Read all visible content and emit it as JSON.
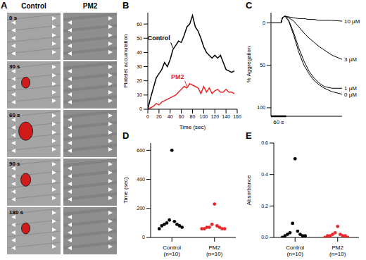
{
  "chart_data": [
    {
      "type": "image_grid",
      "title": "A",
      "columns": [
        "Control",
        "PM2"
      ],
      "rows": [
        "0 s",
        "30 s",
        "60 s",
        "90 s",
        "180 s"
      ]
    },
    {
      "type": "line",
      "title": "B",
      "x_label": "Time (sec)",
      "y_label": "Platelet accumulation",
      "x": [
        0,
        5,
        10,
        15,
        20,
        25,
        30,
        35,
        40,
        45,
        50,
        55,
        60,
        65,
        70,
        75,
        80,
        85,
        90,
        95,
        100,
        105,
        110,
        115,
        120,
        125,
        130,
        135,
        140,
        145,
        150,
        155
      ],
      "series": [
        {
          "name": "Control",
          "color": "#000000",
          "values": [
            0,
            8,
            15,
            22,
            25,
            28,
            33,
            30,
            35,
            42,
            45,
            48,
            47,
            52,
            58,
            60,
            66,
            58,
            55,
            50,
            44,
            40,
            38,
            36,
            38,
            36,
            38,
            33,
            28,
            27,
            26,
            27
          ]
        },
        {
          "name": "PM2",
          "color": "#e8272a",
          "values": [
            0,
            1,
            2,
            4,
            3,
            5,
            6,
            7,
            8,
            9,
            10,
            12,
            14,
            16,
            15,
            18,
            17,
            16,
            15,
            11,
            16,
            12,
            15,
            11,
            13,
            14,
            12,
            12,
            14,
            12,
            12,
            11
          ]
        }
      ],
      "xlim": [
        0,
        160
      ],
      "xticks": [
        0,
        20,
        40,
        60,
        80,
        100,
        120,
        140,
        160
      ],
      "ylim": [
        0,
        68
      ],
      "yticks": [
        0,
        10,
        20,
        30,
        40,
        50,
        60
      ]
    },
    {
      "type": "line",
      "title": "C",
      "y_label": "% Aggregation",
      "x": [
        0,
        20,
        40,
        45,
        55,
        70,
        90,
        110,
        130,
        150,
        170,
        190,
        210,
        240,
        280
      ],
      "series": [
        {
          "name": "10 µM",
          "color": "#000000",
          "values": [
            0,
            0,
            0,
            -6,
            -8,
            -7,
            -6,
            -5,
            -5,
            -4,
            -4,
            -3,
            -3,
            -3,
            -2
          ]
        },
        {
          "name": "3 µM",
          "color": "#000000",
          "values": [
            0,
            0,
            0,
            -6,
            -8,
            -6,
            -2,
            5,
            12,
            18,
            23,
            28,
            32,
            38,
            43
          ]
        },
        {
          "name": "1 µM",
          "color": "#000000",
          "values": [
            0,
            0,
            0,
            -6,
            -8,
            -3,
            12,
            30,
            45,
            57,
            65,
            71,
            75,
            77,
            77
          ]
        },
        {
          "name": "0 µM",
          "color": "#000000",
          "values": [
            0,
            0,
            0,
            -6,
            -8,
            -2,
            15,
            35,
            50,
            60,
            68,
            73,
            77,
            81,
            84
          ]
        }
      ],
      "xlim": [
        0,
        280
      ],
      "ylim": [
        -12,
        110
      ],
      "yticks": [
        0,
        50,
        100
      ],
      "tick_labels": "y",
      "scale_bar": {
        "value": 60,
        "label": "60 s"
      }
    },
    {
      "type": "scatter",
      "title": "D",
      "y_label": "Time (sec)",
      "categories": [
        "Control\n(n=10)",
        "PM2\n(n=10)"
      ],
      "colors": [
        "#000000",
        "#e8272a"
      ],
      "values": [
        [
          600,
          120,
          110,
          100,
          90,
          90,
          80,
          80,
          70,
          60
        ],
        [
          230,
          90,
          80,
          70,
          70,
          70,
          60,
          60,
          60,
          60
        ]
      ],
      "ylim": [
        0,
        650
      ],
      "yticks": [
        0,
        200,
        400,
        600
      ]
    },
    {
      "type": "scatter",
      "title": "E",
      "y_label": "Absorbance",
      "categories": [
        "Control\n(n=10)",
        "PM2\n(n=10)"
      ],
      "colors": [
        "#000000",
        "#e8272a"
      ],
      "values": [
        [
          0.5,
          0.09,
          0.04,
          0.03,
          0.02,
          0.02,
          0.01,
          0.01,
          0.01,
          0.0
        ],
        [
          0.07,
          0.03,
          0.02,
          0.02,
          0.01,
          0.01,
          0.01,
          0.01,
          0.0,
          0.0
        ]
      ],
      "ylim": [
        0,
        0.6
      ],
      "yticks": [
        {
          "value": 0,
          "label": "0.0"
        },
        0.2,
        0.4,
        0.6
      ]
    }
  ]
}
